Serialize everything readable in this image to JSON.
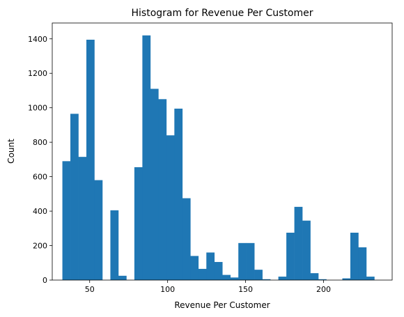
{
  "chart_data": {
    "type": "bar",
    "title": "Histogram for Revenue Per Customer",
    "xlabel": "Revenue Per Customer",
    "ylabel": "Count",
    "color": "#1f77b4",
    "xlim": [
      26,
      244
    ],
    "ylim": [
      0,
      1492
    ],
    "xticks": [
      50,
      100,
      150,
      200
    ],
    "yticks": [
      0,
      200,
      400,
      600,
      800,
      1000,
      1200,
      1400
    ],
    "bin_start": 32.5,
    "bin_width": 5.13,
    "values": [
      690,
      965,
      715,
      1395,
      580,
      0,
      405,
      25,
      0,
      655,
      1420,
      1110,
      1050,
      840,
      995,
      475,
      140,
      65,
      160,
      105,
      30,
      15,
      215,
      215,
      60,
      5,
      0,
      20,
      275,
      425,
      345,
      40,
      5,
      0,
      0,
      10,
      275,
      190,
      20
    ],
    "grid": false,
    "legend": "none"
  }
}
